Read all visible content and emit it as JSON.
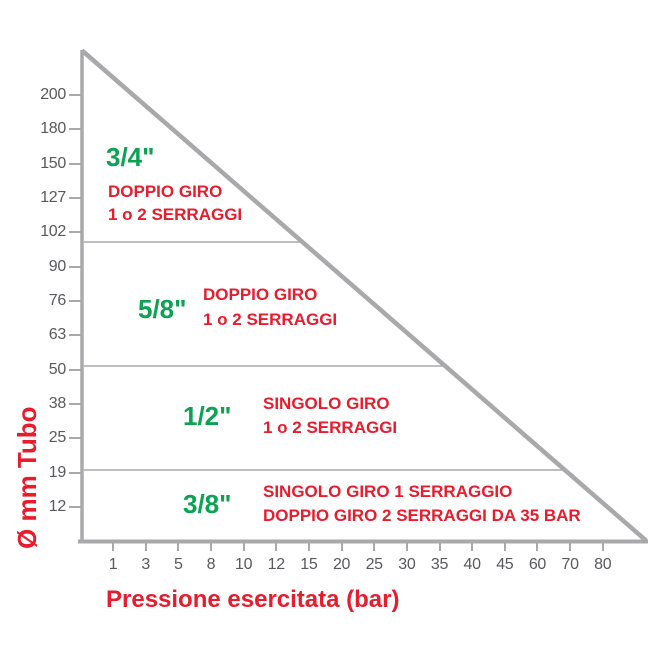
{
  "chart_data": {
    "type": "area",
    "title": "",
    "xlabel": "Pressione esercitata (bar)",
    "ylabel": "Ø mm Tubo",
    "x_unit": "bar",
    "y_unit": "mm",
    "x_ticks": [
      "1",
      "3",
      "5",
      "8",
      "10",
      "12",
      "15",
      "20",
      "25",
      "30",
      "35",
      "40",
      "45",
      "60",
      "70",
      "80"
    ],
    "y_ticks": [
      "200",
      "180",
      "150",
      "127",
      "102",
      "90",
      "76",
      "63",
      "50",
      "38",
      "25",
      "19",
      "12"
    ],
    "boundary_line": "diagonal limit line from the top of the diameter axis at 1 bar down to the pressure axis at 80 bar",
    "zone_divider_diameters_mm": [
      102,
      50,
      19
    ],
    "grid": "off",
    "zones": [
      {
        "band_size": "3/4\"",
        "line1": "DOPPIO GIRO",
        "line2": "1 o 2 SERRAGGI"
      },
      {
        "band_size": "5/8\"",
        "line1": "DOPPIO GIRO",
        "line2": "1 o 2 SERRAGGI"
      },
      {
        "band_size": "1/2\"",
        "line1": "SINGOLO GIRO",
        "line2": "1 o 2 SERRAGGI"
      },
      {
        "band_size": "3/8\"",
        "line1": "SINGOLO GIRO 1 SERRAGGIO",
        "line2": "DOPPIO GIRO 2 SERRAGGI DA 35 BAR"
      }
    ]
  },
  "colors": {
    "accent_red": "#e81c2d",
    "accent_green": "#0aa351",
    "axis_gray": "#a9a9ab",
    "tick_text": "#58595c"
  }
}
